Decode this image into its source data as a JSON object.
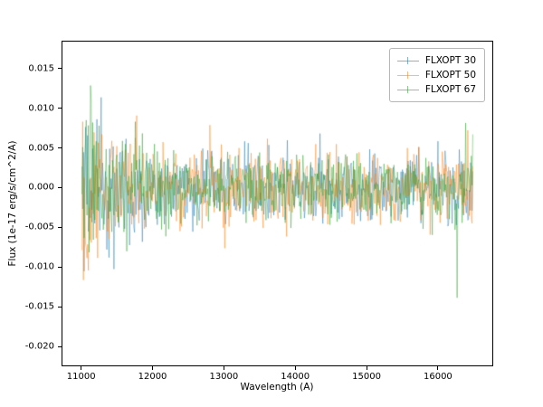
{
  "figure": {
    "background": "#ffffff",
    "axes_edge_color": "#000000"
  },
  "chart_data": {
    "type": "line",
    "title": "",
    "xlabel": "Wavelength (A)",
    "ylabel": "Flux (1e-17 erg/s/cm^2/A)",
    "xlim": [
      10725,
      16775
    ],
    "ylim": [
      -0.0225,
      0.0185
    ],
    "x_data_range": [
      11000,
      16500
    ],
    "x_ticks": [
      11000,
      12000,
      13000,
      14000,
      15000,
      16000
    ],
    "x_tick_labels": [
      "11000",
      "12000",
      "13000",
      "14000",
      "15000",
      "16000"
    ],
    "y_ticks": [
      -0.02,
      -0.015,
      -0.01,
      -0.005,
      0.0,
      0.005,
      0.01,
      0.015
    ],
    "y_tick_labels": [
      "-0.020",
      "-0.015",
      "-0.010",
      "-0.005",
      "0.000",
      "0.005",
      "0.010",
      "0.015"
    ],
    "grid": false,
    "legend_position": "upper right",
    "series": [
      {
        "name": "FLXOPT 30",
        "color": "#1f77b4",
        "alpha": 0.5,
        "seed": 11
      },
      {
        "name": "FLXOPT 50",
        "color": "#ff7f0e",
        "alpha": 0.5,
        "seed": 22
      },
      {
        "name": "FLXOPT 67",
        "color": "#2ca02c",
        "alpha": 0.5,
        "seed": 33
      }
    ],
    "noise_model": {
      "description": "zero-mean noisy spectrum; amplitude ~0.017 near 11000 A decaying to ~0.006 by 12500 A, roughly constant after, slight rise (~0.009) near 16300 A",
      "points_per_series": 551,
      "base_amplitude": 0.0055,
      "startup_extra_amplitude": 0.011,
      "startup_decay_scale": 500,
      "end_bump_center": 16300,
      "end_bump_amplitude": 0.0022,
      "end_bump_width": 300,
      "value_clip": [
        -0.0205,
        0.0168
      ]
    }
  }
}
